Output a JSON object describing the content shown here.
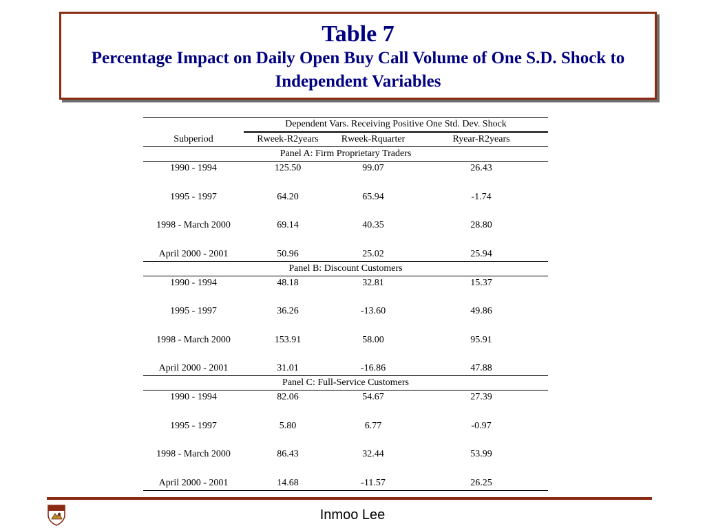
{
  "header": {
    "title": "Table 7",
    "subtitle": "Percentage Impact on Daily Open Buy Call Volume of One S.D. Shock to Independent Variables"
  },
  "table": {
    "stub_header": "Subperiod",
    "group_header": "Dependent Vars. Receiving Positive One Std. Dev. Shock",
    "columns": [
      "Rweek-R2years",
      "Rweek-Rquarter",
      "Ryear-R2years"
    ],
    "panels": [
      {
        "label": "Panel A:  Firm  Proprietary Traders",
        "rows": [
          {
            "period": "1990 - 1994",
            "values": [
              "125.50",
              "99.07",
              "26.43"
            ]
          },
          {
            "period": "1995 - 1997",
            "values": [
              "64.20",
              "65.94",
              "-1.74"
            ]
          },
          {
            "period": "1998 - March 2000",
            "values": [
              "69.14",
              "40.35",
              "28.80"
            ]
          },
          {
            "period": "April 2000 - 2001",
            "values": [
              "50.96",
              "25.02",
              "25.94"
            ]
          }
        ]
      },
      {
        "label": "Panel B:  Discount Customers",
        "rows": [
          {
            "period": "1990 - 1994",
            "values": [
              "48.18",
              "32.81",
              "15.37"
            ]
          },
          {
            "period": "1995 - 1997",
            "values": [
              "36.26",
              "-13.60",
              "49.86"
            ]
          },
          {
            "period": "1998 - March 2000",
            "values": [
              "153.91",
              "58.00",
              "95.91"
            ]
          },
          {
            "period": "April 2000 - 2001",
            "values": [
              "31.01",
              "-16.86",
              "47.88"
            ]
          }
        ]
      },
      {
        "label": "Panel C:  Full-Service Customers",
        "rows": [
          {
            "period": "1990 - 1994",
            "values": [
              "82.06",
              "54.67",
              "27.39"
            ]
          },
          {
            "period": "1995 - 1997",
            "values": [
              "5.80",
              "6.77",
              "-0.97"
            ]
          },
          {
            "period": "1998 - March 2000",
            "values": [
              "86.43",
              "32.44",
              "53.99"
            ]
          },
          {
            "period": "April 2000 - 2001",
            "values": [
              "14.68",
              "-11.57",
              "26.25"
            ]
          }
        ]
      }
    ]
  },
  "footer": {
    "author": "Inmoo Lee",
    "logo_icon": "university-crest-icon"
  },
  "colors": {
    "title_text": "#000080",
    "frame": "#8b2a14"
  }
}
